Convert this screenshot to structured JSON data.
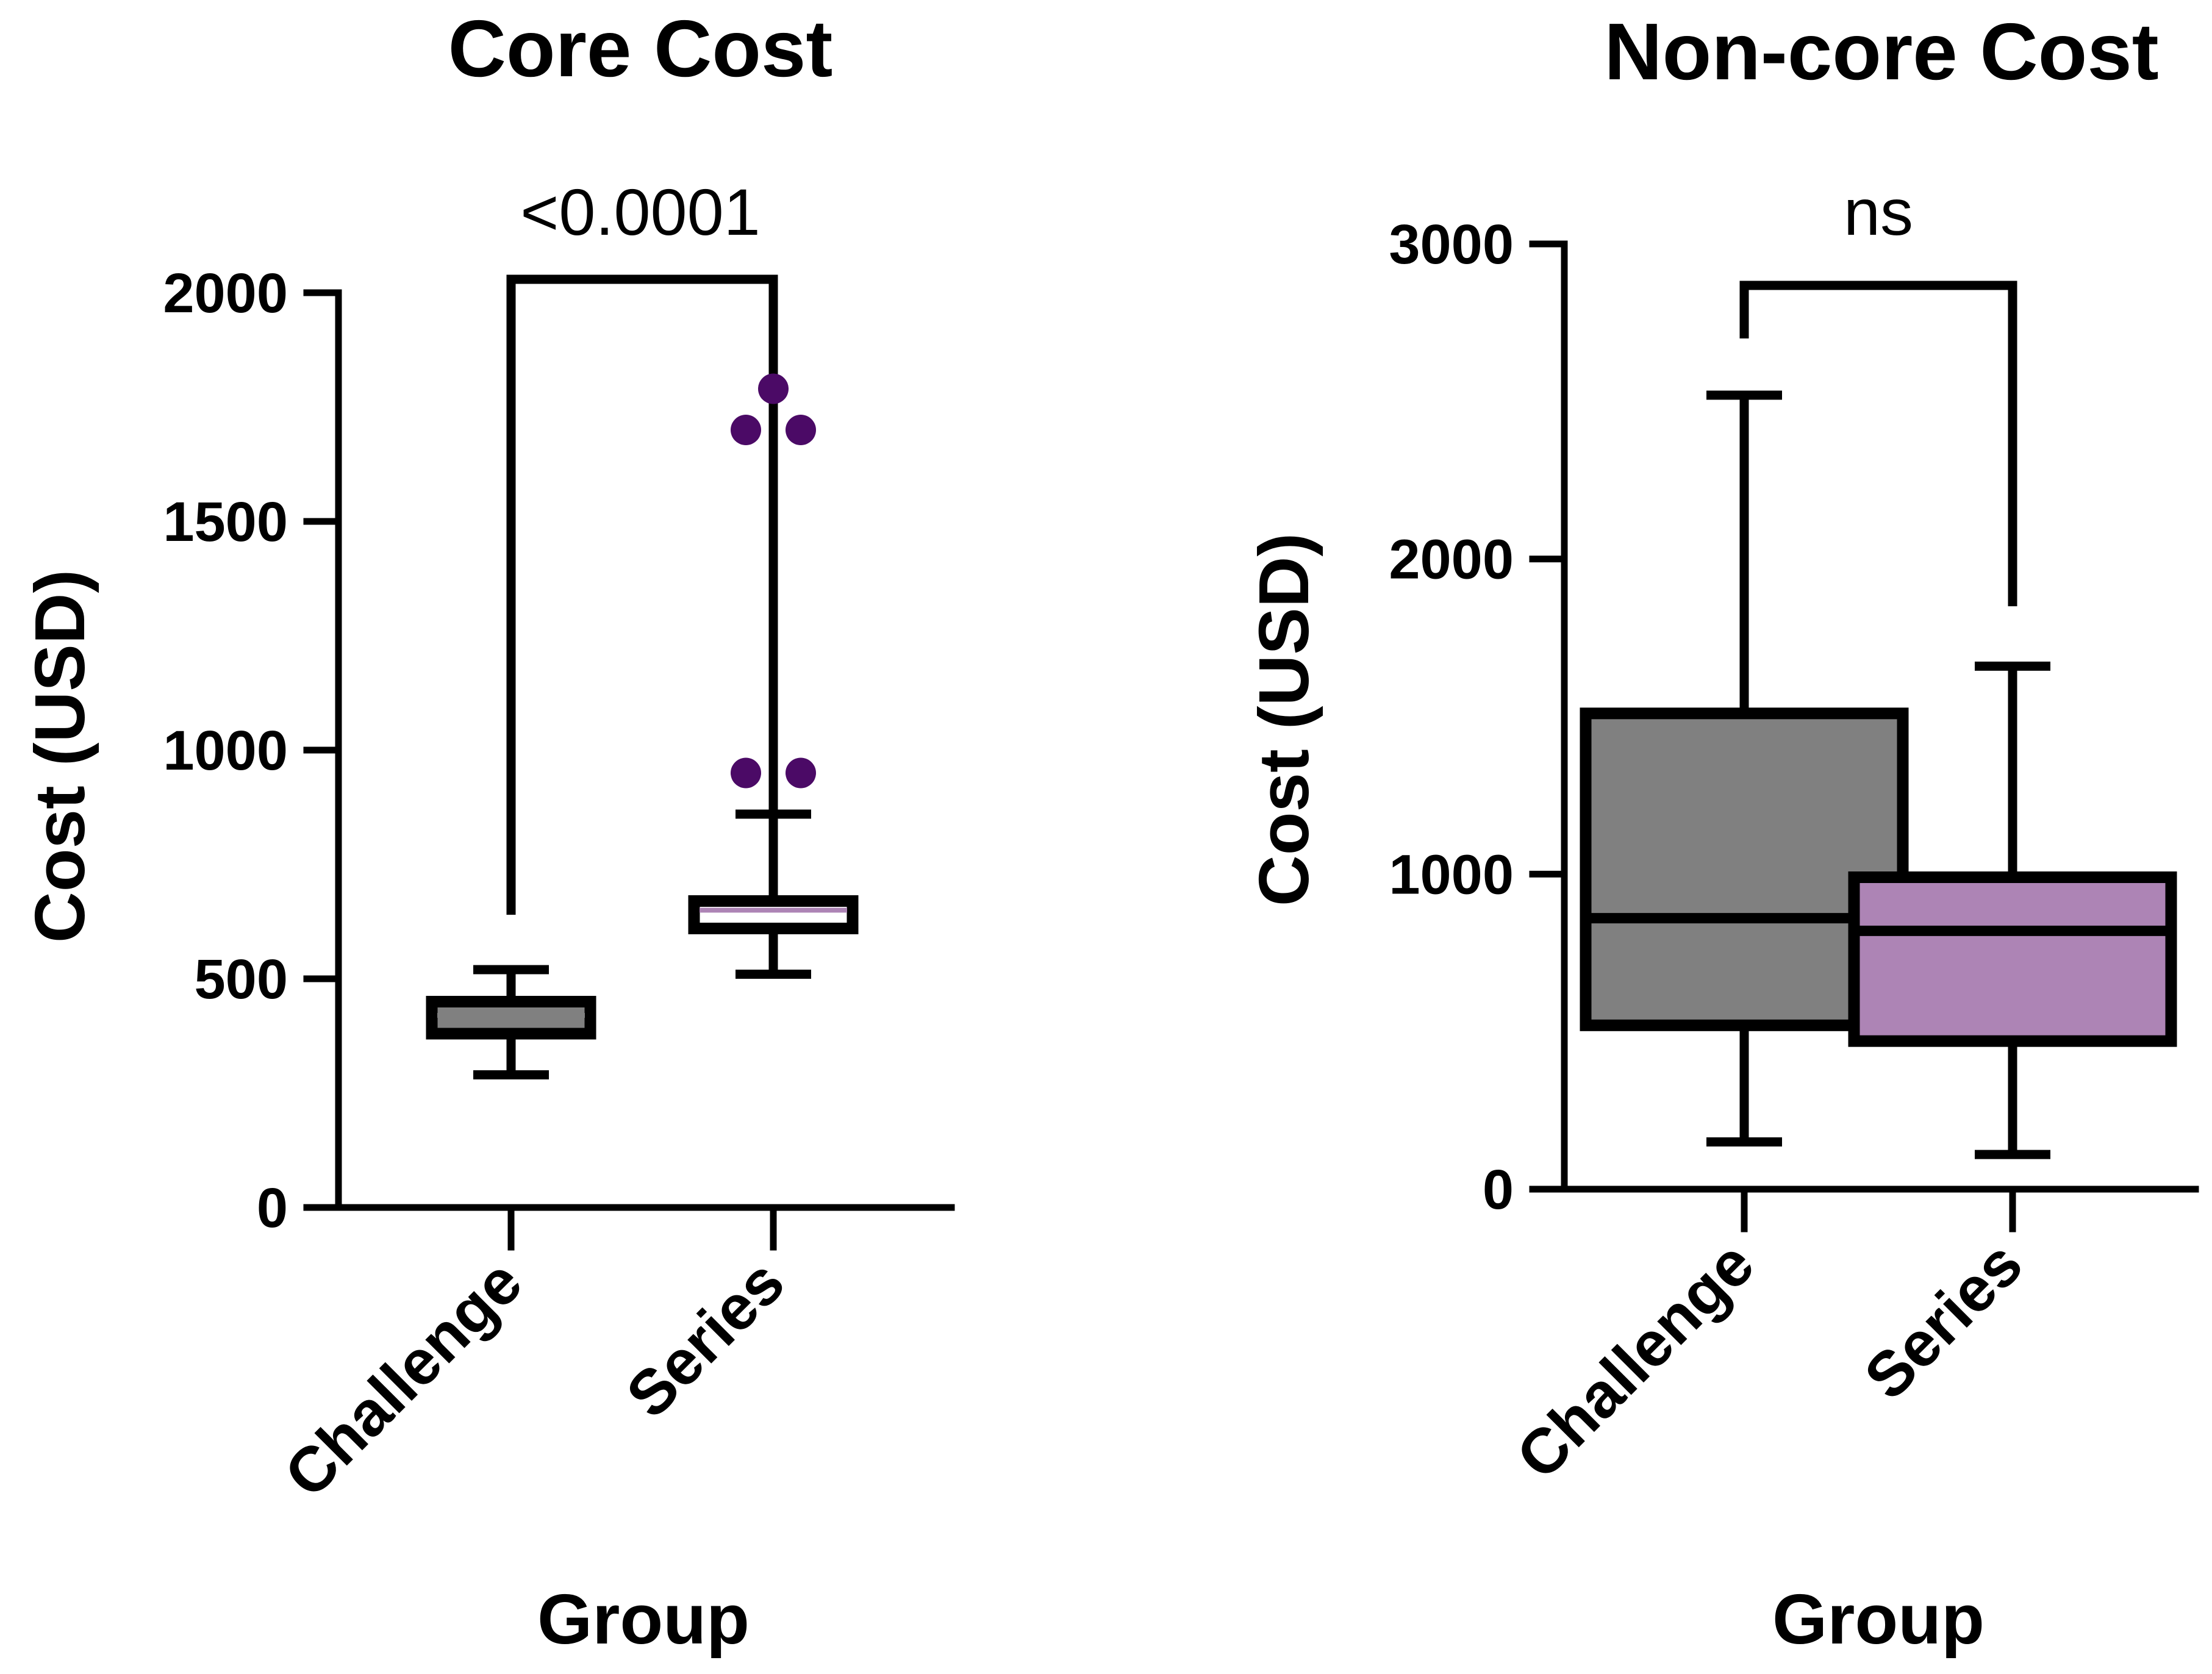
{
  "chart_data": [
    {
      "type": "box",
      "title": "Core Cost",
      "xlabel": "Group",
      "ylabel": "Cost (USD)",
      "categories": [
        "Challenge",
        "Series"
      ],
      "ylim": [
        0,
        2000
      ],
      "yticks": [
        0,
        500,
        1000,
        1500,
        2000
      ],
      "grid": false,
      "boxes": [
        {
          "name": "Challenge",
          "min": 290,
          "q1": 380,
          "median": 420,
          "q3": 450,
          "max": 520,
          "color": "#808080",
          "median_color": "#808080",
          "outliers": []
        },
        {
          "name": "Series",
          "min": 510,
          "q1": 610,
          "median": 650,
          "q3": 670,
          "max": 860,
          "color": "#ffffff",
          "median_color": "#ad84b5",
          "outliers": [
            950,
            950,
            1700,
            1700,
            1790
          ]
        }
      ],
      "outlier_color": "#4b0a66",
      "significance": {
        "label": "<0.0001",
        "left_from": 640,
        "right_from": 860,
        "top": 2000
      }
    },
    {
      "type": "box",
      "title": "Non-core Cost",
      "xlabel": "Group",
      "ylabel": "Cost (USD)",
      "categories": [
        "Challenge",
        "Series"
      ],
      "ylim": [
        0,
        3000
      ],
      "yticks": [
        0,
        1000,
        2000,
        3000
      ],
      "grid": false,
      "boxes": [
        {
          "name": "Challenge",
          "min": 150,
          "q1": 520,
          "median": 860,
          "q3": 1510,
          "max": 2520,
          "color": "#808080",
          "median_color": "#000000",
          "outliers": []
        },
        {
          "name": "Series",
          "min": 110,
          "q1": 470,
          "median": 820,
          "q3": 990,
          "max": 1660,
          "color": "#ad84b5",
          "median_color": "#000000",
          "outliers": []
        }
      ],
      "significance": {
        "label": "ns",
        "left_from": 2700,
        "right_from": 1850,
        "top": 2880
      }
    }
  ]
}
